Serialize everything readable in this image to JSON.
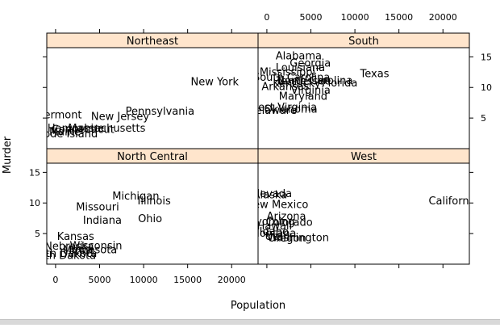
{
  "colors": {
    "strip_fill": "#ffe5cc",
    "frame": "#000000",
    "background": "#ffffff",
    "window_edge": "#d9d9d9"
  },
  "chart_data": {
    "type": "scatter",
    "subtype": "trellis text scatter (lattice), 2x2 panels",
    "title": "",
    "xlabel": "Population",
    "ylabel": "Murder",
    "xlim": [
      -1000,
      23000
    ],
    "ylim": [
      0,
      16.5
    ],
    "x_ticks": [
      "0",
      "5000",
      "10000",
      "15000",
      "20000"
    ],
    "y_ticks": [
      "5",
      "10",
      "15"
    ],
    "grid": false,
    "points_drawn_as_labels": true,
    "panels": [
      {
        "name": "North Central",
        "points": [
          {
            "label": "Michigan",
            "x": 9111,
            "y": 11.1
          },
          {
            "label": "Illinois",
            "x": 11197,
            "y": 10.3
          },
          {
            "label": "Missouri",
            "x": 4767,
            "y": 9.3
          },
          {
            "label": "Indiana",
            "x": 5313,
            "y": 7.1
          },
          {
            "label": "Ohio",
            "x": 10735,
            "y": 7.4
          },
          {
            "label": "Kansas",
            "x": 2280,
            "y": 4.5
          },
          {
            "label": "Nebraska",
            "x": 1544,
            "y": 2.9
          },
          {
            "label": "Wisconsin",
            "x": 4589,
            "y": 3.0
          },
          {
            "label": "Minnesota",
            "x": 3921,
            "y": 2.3
          },
          {
            "label": "Iowa",
            "x": 2861,
            "y": 2.3
          },
          {
            "label": "North Dakota",
            "x": 637,
            "y": 1.4
          },
          {
            "label": "South Dakota",
            "x": 681,
            "y": 1.7
          }
        ]
      },
      {
        "name": "West",
        "points": [
          {
            "label": "Nevada",
            "x": 590,
            "y": 11.5
          },
          {
            "label": "New Mexico",
            "x": 1144,
            "y": 9.7
          },
          {
            "label": "California",
            "x": 21198,
            "y": 10.3
          },
          {
            "label": "Arizona",
            "x": 2212,
            "y": 7.8
          },
          {
            "label": "Colorado",
            "x": 2541,
            "y": 6.8
          },
          {
            "label": "Alaska",
            "x": 365,
            "y": 11.3
          },
          {
            "label": "Wyoming",
            "x": 376,
            "y": 6.9
          },
          {
            "label": "Hawaii",
            "x": 868,
            "y": 6.2
          },
          {
            "label": "Montana",
            "x": 746,
            "y": 5.0
          },
          {
            "label": "Oregon",
            "x": 2284,
            "y": 4.2
          },
          {
            "label": "Utah",
            "x": 1203,
            "y": 4.5
          },
          {
            "label": "Washington",
            "x": 3559,
            "y": 4.3
          },
          {
            "label": "Idaho",
            "x": 813,
            "y": 5.3
          }
        ]
      },
      {
        "name": "Northeast",
        "points": [
          {
            "label": "New York",
            "x": 18076,
            "y": 10.9
          },
          {
            "label": "Pennsylvania",
            "x": 11860,
            "y": 6.1
          },
          {
            "label": "New Jersey",
            "x": 7333,
            "y": 5.2
          },
          {
            "label": "Vermont",
            "x": 472,
            "y": 5.5
          },
          {
            "label": "Massachusetts",
            "x": 5814,
            "y": 3.3
          },
          {
            "label": "Connecticut",
            "x": 3100,
            "y": 3.1
          },
          {
            "label": "New Hampshire",
            "x": 812,
            "y": 3.3
          },
          {
            "label": "Maine",
            "x": 1058,
            "y": 2.7
          },
          {
            "label": "Rhode Island",
            "x": 931,
            "y": 2.4
          }
        ]
      },
      {
        "name": "South",
        "points": [
          {
            "label": "Alabama",
            "x": 3615,
            "y": 15.1
          },
          {
            "label": "Georgia",
            "x": 4931,
            "y": 13.9
          },
          {
            "label": "Louisiana",
            "x": 3806,
            "y": 13.2
          },
          {
            "label": "Mississippi",
            "x": 2341,
            "y": 12.5
          },
          {
            "label": "Texas",
            "x": 12237,
            "y": 12.2
          },
          {
            "label": "South Carolina",
            "x": 2816,
            "y": 11.6
          },
          {
            "label": "Florida",
            "x": 8277,
            "y": 10.7
          },
          {
            "label": "North Carolina",
            "x": 5441,
            "y": 11.1
          },
          {
            "label": "Tennessee",
            "x": 4173,
            "y": 11.0
          },
          {
            "label": "Kentucky",
            "x": 3387,
            "y": 10.6
          },
          {
            "label": "Arkansas",
            "x": 2110,
            "y": 10.1
          },
          {
            "label": "Virginia",
            "x": 4981,
            "y": 9.5
          },
          {
            "label": "Maryland",
            "x": 4122,
            "y": 8.5
          },
          {
            "label": "Oklahoma",
            "x": 2715,
            "y": 6.4
          },
          {
            "label": "West Virginia",
            "x": 1799,
            "y": 6.7
          },
          {
            "label": "Delaware",
            "x": 579,
            "y": 6.2
          }
        ]
      }
    ]
  }
}
